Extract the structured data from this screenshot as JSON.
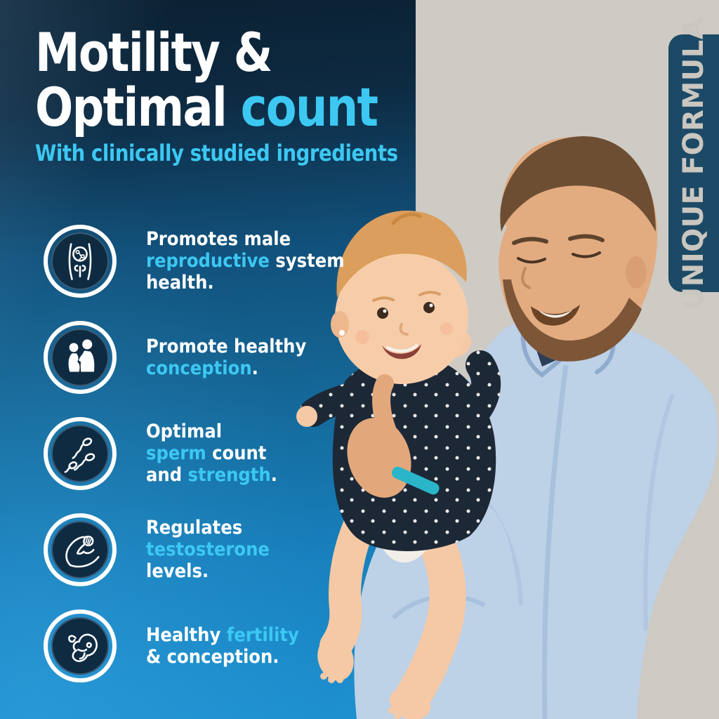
{
  "colors": {
    "accent_cyan": "#3cc8f2",
    "panel_navy_top": "#0b2032",
    "panel_blue_bottom": "#1e90d0",
    "background_gray": "#cecac4",
    "badge_navy": "#1c4a66",
    "icon_disc_navy": "#0e2b42",
    "text_white": "#ffffff"
  },
  "header": {
    "title_line1": "Motility &",
    "title_line2_white": "Optimal",
    "title_line2_accent": "count",
    "subtitle": "With clinically studied ingredients"
  },
  "badge": {
    "label": "UNIQUE FORMULA"
  },
  "benefits": [
    {
      "icon": "male-reproductive-system",
      "lines": [
        [
          {
            "t": "Promotes male"
          }
        ],
        [
          {
            "t": "reproductive",
            "accent": true
          },
          {
            "t": " system"
          }
        ],
        [
          {
            "t": "health."
          }
        ]
      ]
    },
    {
      "icon": "couple-conception",
      "lines": [
        [
          {
            "t": "Promote healthy"
          }
        ],
        [
          {
            "t": "conception",
            "accent": true
          },
          {
            "t": "."
          }
        ]
      ]
    },
    {
      "icon": "sperm-cells",
      "lines": [
        [
          {
            "t": "Optimal"
          }
        ],
        [
          {
            "t": "sperm",
            "accent": true
          },
          {
            "t": " count"
          }
        ],
        [
          {
            "t": "and "
          },
          {
            "t": "strength",
            "accent": true
          },
          {
            "t": "."
          }
        ]
      ]
    },
    {
      "icon": "bicep-strength",
      "lines": [
        [
          {
            "t": "Regulates"
          }
        ],
        [
          {
            "t": "testosterone",
            "accent": true
          }
        ],
        [
          {
            "t": "levels."
          }
        ]
      ]
    },
    {
      "icon": "fetus-fertility",
      "lines": [
        [
          {
            "t": "Healthy "
          },
          {
            "t": "fertility",
            "accent": true
          }
        ],
        [
          {
            "t": "& conception."
          }
        ]
      ]
    }
  ],
  "photo": {
    "alt": "Father in light blue shirt smiling down at the baby he is holding; baby in dark polka-dot outfit with hand at mouth"
  }
}
